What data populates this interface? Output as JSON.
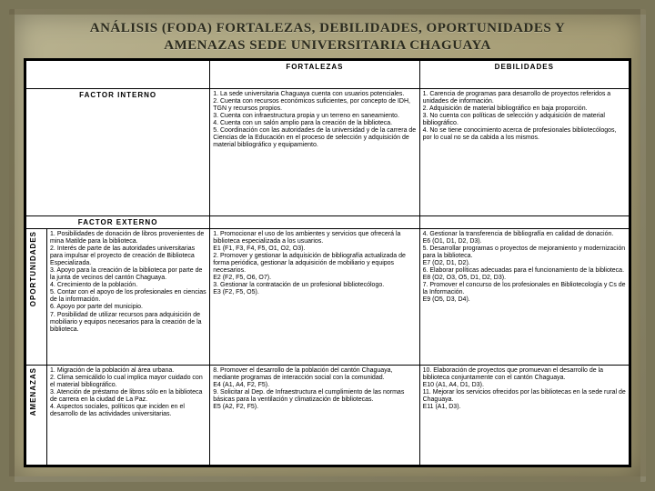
{
  "title_l1": "ANÁLISIS (FODA) FORTALEZAS, DEBILIDADES, OPORTUNIDADES Y",
  "title_l2": "AMENAZAS SEDE UNIVERSITARIA CHAGUAYA",
  "head_fortalezas": "FORTALEZAS",
  "head_debilidades": "DEBILIDADES",
  "factor_interno": "FACTOR INTERNO",
  "factor_externo": "FACTOR EXTERNO",
  "label_oportunidades": "OPORTUNIDADES",
  "label_amenazas": "AMENAZAS",
  "cell_fort_interno": "1. La sede universitaria Chaguaya cuenta con usuarios potenciales.\n2. Cuenta con recursos económicos suficientes, por concepto de IDH, TGN y recursos propios.\n3. Cuenta con infraestructura propia y un terreno en saneamiento.\n4. Cuenta con un salón amplio para la creación de la biblioteca.\n5. Coordinación con las autoridades de la universidad y de la carrera de Ciencias de la Educación en el proceso de selección y adquisición de material bibliográfico y equipamiento.",
  "cell_deb_interno": "1. Carencia de programas para desarrollo de proyectos referidos a unidades de información.\n2. Adquisición de material bibliográfico en baja proporción.\n3. No cuenta con políticas de selección y adquisición de material bibliográfico.\n4. No se tiene conocimiento acerca de profesionales bibliotecólogos, por lo cual no se da cabida a los mismos.",
  "cell_oport_list": "1. Posibilidades de donación de libros provenientes de mina Matilde para la biblioteca.\n2. Interés de parte de las autoridades universitarias para impulsar el proyecto de creación de Biblioteca Especializada.\n3. Apoyo para la creación de la biblioteca por parte de la junta de vecinos del cantón Chaguaya.\n4. Crecimiento de la población.\n5. Contar con el apoyo de los profesionales en ciencias de la información.\n6. Apoyo por parte del municipio.\n7. Posibilidad de utilizar recursos para adquisición de mobiliario y equipos necesarios para la creación de la biblioteca.",
  "cell_oport_estrat_f": "1. Promocionar el uso de los ambientes y servicios que ofrecerá la biblioteca especializada a los usuarios.\nE1 (F1, F3, F4, F5, O1, O2, O3).\n2. Promover y gestionar la adquisición de bibliografía actualizada de forma periódica, gestionar la adquisición de mobiliario y equipos necesarios.\nE2 (F2, F5, O6, O7).\n3. Gestionar la contratación de un profesional bibliotecólogo.\nE3 (F2, F5, O5).",
  "cell_oport_estrat_d": "4. Gestionar la transferencia de bibliografía en calidad de donación.\nE6 (O1, D1, D2, D3).\n5. Desarrollar programas o proyectos de mejoramiento y modernización para la biblioteca.\nE7 (O2, D1, D2).\n6. Elaborar políticas adecuadas para el funcionamiento de la biblioteca.\nE8 (O2, O3, O5, D1, D2, D3).\n7. Promover el concurso de los profesionales en Bibliotecología y Cs de la Información.\nE9 (O5, D3, D4).",
  "cell_amen_list": "1. Migración de la población al área urbana.\n2. Clima semicálido lo cual implica mayor cuidado con el material bibliográfico.\n3. Atención de préstamo de libros sólo en la biblioteca de carrera en la ciudad de La Paz.\n4. Aspectos sociales, políticos que inciden en el desarrollo de las actividades universitarias.",
  "cell_amen_estrat_f": "8. Promover el desarrollo de la población del cantón Chaguaya, mediante programas de interacción social con la comunidad.\nE4 (A1, A4, F2, F5).\n9. Solicitar al Dep. de Infraestructura el cumplimiento de las normas básicas para la ventilación y climatización de bibliotecas.\nE5 (A2, F2, F5).",
  "cell_amen_estrat_d": "10. Elaboración de proyectos que promuevan el desarrollo de la biblioteca conjuntamente con el cantón Chaguaya.\nE10 (A1, A4, D1, D3).\n11. Mejorar los servicios ofrecidos por las bibliotecas en la sede rural de Chaguaya.\nE11 (A1, D3)."
}
